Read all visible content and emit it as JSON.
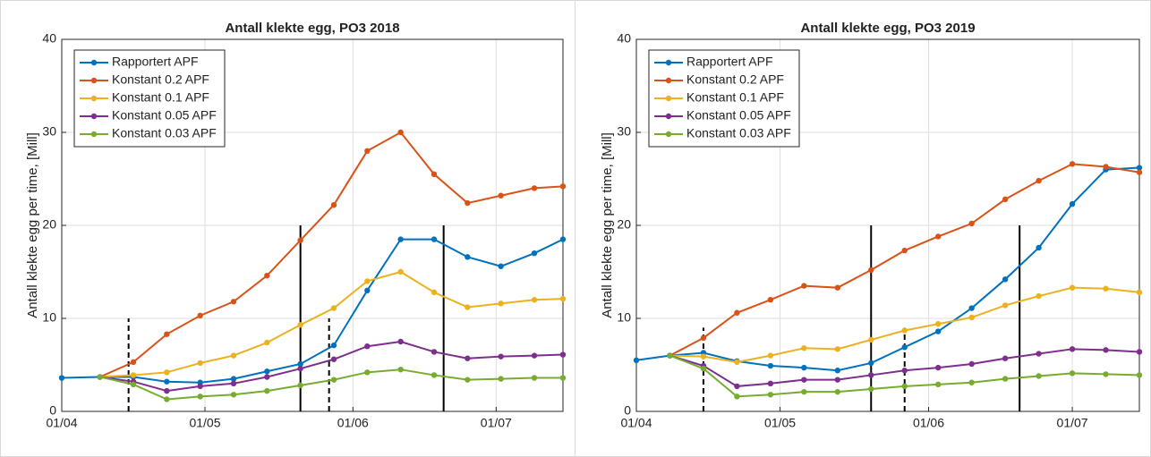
{
  "chart_data": [
    {
      "type": "line",
      "title": "Antall klekte egg, PO3 2018",
      "ylabel": "Antall klekte egg per time, [Mill]",
      "x": [
        "01/04",
        "09/04",
        "16/04",
        "23/04",
        "30/04",
        "07/05",
        "14/05",
        "21/05",
        "28/05",
        "04/06",
        "11/06",
        "18/06",
        "25/06",
        "02/07",
        "09/07",
        "15/07"
      ],
      "series": [
        {
          "name": "Rapportert APF",
          "color": "#0072BD",
          "values": [
            3.6,
            3.7,
            3.7,
            3.2,
            3.1,
            3.5,
            4.3,
            5.1,
            7.1,
            13,
            18.5,
            18.5,
            16.6,
            15.6,
            17,
            18.5
          ]
        },
        {
          "name": "Konstant 0.2 APF",
          "color": "#D95319",
          "values": [
            null,
            3.7,
            5.3,
            8.3,
            10.3,
            11.8,
            14.6,
            18.4,
            22.2,
            28,
            30,
            25.5,
            22.4,
            23.2,
            24,
            24.2
          ]
        },
        {
          "name": "Konstant 0.1 APF",
          "color": "#EDB120",
          "values": [
            null,
            3.7,
            3.9,
            4.2,
            5.2,
            6.0,
            7.4,
            9.3,
            11.1,
            14,
            15,
            12.8,
            11.2,
            11.6,
            12,
            12.1
          ]
        },
        {
          "name": "Konstant 0.05 APF",
          "color": "#7E2F8E",
          "values": [
            null,
            3.7,
            3.2,
            2.2,
            2.7,
            3.0,
            3.7,
            4.6,
            5.6,
            7.0,
            7.5,
            6.4,
            5.7,
            5.9,
            6.0,
            6.1
          ]
        },
        {
          "name": "Konstant 0.03 APF",
          "color": "#77AC30",
          "values": [
            null,
            3.7,
            2.9,
            1.3,
            1.6,
            1.8,
            2.2,
            2.8,
            3.4,
            4.2,
            4.5,
            3.9,
            3.4,
            3.5,
            3.6,
            3.6
          ]
        }
      ],
      "xlim": [
        "01/04",
        "15/07"
      ],
      "xticks": [
        "01/04",
        "01/05",
        "01/06",
        "01/07"
      ],
      "ylim": [
        0,
        40
      ],
      "yticks": [
        0,
        10,
        20,
        30,
        40
      ],
      "grid": true,
      "legend": "upper left",
      "vlines": [
        {
          "x": "15/04",
          "top": 10,
          "style": "dashed"
        },
        {
          "x": "21/05",
          "top": 20,
          "style": "solid"
        },
        {
          "x": "27/05",
          "top": 10,
          "style": "dashed"
        },
        {
          "x": "20/06",
          "top": 20,
          "style": "solid"
        }
      ]
    },
    {
      "type": "line",
      "title": "Antall klekte egg, PO3 2019",
      "ylabel": "Antall klekte egg per time, [Mill]",
      "x": [
        "01/04",
        "08/04",
        "15/04",
        "22/04",
        "29/04",
        "06/05",
        "13/05",
        "20/05",
        "27/05",
        "03/06",
        "10/06",
        "17/06",
        "24/06",
        "01/07",
        "08/07",
        "15/07"
      ],
      "series": [
        {
          "name": "Rapportert APF",
          "color": "#0072BD",
          "values": [
            5.5,
            6.0,
            6.3,
            5.4,
            4.9,
            4.7,
            4.4,
            5.2,
            6.9,
            8.6,
            11.1,
            14.2,
            17.6,
            22.3,
            26,
            26.2
          ]
        },
        {
          "name": "Konstant 0.2 APF",
          "color": "#D95319",
          "values": [
            null,
            6.0,
            7.9,
            10.6,
            12,
            13.5,
            13.3,
            15.2,
            17.3,
            18.8,
            20.2,
            22.8,
            24.8,
            26.6,
            26.3,
            25.7
          ]
        },
        {
          "name": "Konstant 0.1 APF",
          "color": "#EDB120",
          "values": [
            null,
            6.0,
            5.9,
            5.3,
            6.0,
            6.8,
            6.7,
            7.7,
            8.7,
            9.4,
            10.1,
            11.4,
            12.4,
            13.3,
            13.2,
            12.8
          ]
        },
        {
          "name": "Konstant 0.05 APF",
          "color": "#7E2F8E",
          "values": [
            null,
            6.0,
            4.9,
            2.7,
            3.0,
            3.4,
            3.4,
            3.9,
            4.4,
            4.7,
            5.1,
            5.7,
            6.2,
            6.7,
            6.6,
            6.4
          ]
        },
        {
          "name": "Konstant 0.03 APF",
          "color": "#77AC30",
          "values": [
            null,
            6.0,
            4.6,
            1.6,
            1.8,
            2.1,
            2.1,
            2.4,
            2.7,
            2.9,
            3.1,
            3.5,
            3.8,
            4.1,
            4.0,
            3.9
          ]
        }
      ],
      "xlim": [
        "01/04",
        "15/07"
      ],
      "xticks": [
        "01/04",
        "01/05",
        "01/06",
        "01/07"
      ],
      "ylim": [
        0,
        40
      ],
      "yticks": [
        0,
        10,
        20,
        30,
        40
      ],
      "grid": true,
      "legend": "upper left",
      "vlines": [
        {
          "x": "15/04",
          "top": 9,
          "style": "dashed"
        },
        {
          "x": "20/05",
          "top": 20,
          "style": "solid"
        },
        {
          "x": "27/05",
          "top": 9,
          "style": "dashed"
        },
        {
          "x": "20/06",
          "top": 20,
          "style": "solid"
        }
      ]
    }
  ]
}
